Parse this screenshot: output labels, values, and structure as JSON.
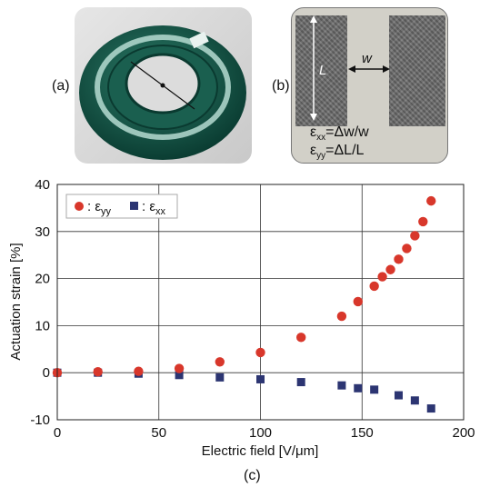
{
  "panels": {
    "a_label": "(a)",
    "b_label": "(b)",
    "c_label": "(c)"
  },
  "photo_b": {
    "length_label": "L",
    "width_label": "w",
    "eq_xx_symbol": "ε",
    "eq_xx_sub": "xx",
    "eq_xx_rhs": "=Δw/w",
    "eq_yy_symbol": "ε",
    "eq_yy_sub": "yy",
    "eq_yy_rhs": "=ΔL/L"
  },
  "colors": {
    "eyy": "#d8372b",
    "exx": "#2c3572",
    "ring": "#0f4a3d"
  },
  "chart_data": {
    "type": "scatter",
    "xlabel": "Electric field [V/μm]",
    "ylabel": "Actuation strain [%]",
    "xlim": [
      0,
      200
    ],
    "ylim": [
      -10,
      40
    ],
    "xticks": [
      0,
      50,
      100,
      150,
      200
    ],
    "yticks": [
      -10,
      0,
      10,
      20,
      30,
      40
    ],
    "grid": true,
    "legend_position": "top-left",
    "series": [
      {
        "name": "ε_yy",
        "legend_symbol": "ε",
        "legend_sub": "yy",
        "marker": "circle",
        "points": [
          [
            0,
            0
          ],
          [
            20,
            0.2
          ],
          [
            40,
            0.3
          ],
          [
            60,
            0.9
          ],
          [
            80,
            2.3
          ],
          [
            100,
            4.3
          ],
          [
            120,
            7.5
          ],
          [
            140,
            12
          ],
          [
            148,
            15.1
          ],
          [
            156,
            18.4
          ],
          [
            160,
            20.4
          ],
          [
            164,
            21.9
          ],
          [
            168,
            24.1
          ],
          [
            172,
            26.4
          ],
          [
            176,
            29.1
          ],
          [
            180,
            32.1
          ],
          [
            184,
            36.5
          ]
        ]
      },
      {
        "name": "ε_xx",
        "legend_symbol": "ε",
        "legend_sub": "xx",
        "marker": "square",
        "points": [
          [
            0,
            0
          ],
          [
            20,
            0
          ],
          [
            40,
            -0.2
          ],
          [
            60,
            -0.5
          ],
          [
            80,
            -1
          ],
          [
            100,
            -1.4
          ],
          [
            120,
            -2
          ],
          [
            140,
            -2.7
          ],
          [
            148,
            -3.3
          ],
          [
            156,
            -3.6
          ],
          [
            168,
            -4.8
          ],
          [
            176,
            -5.9
          ],
          [
            184,
            -7.6
          ]
        ]
      }
    ]
  }
}
